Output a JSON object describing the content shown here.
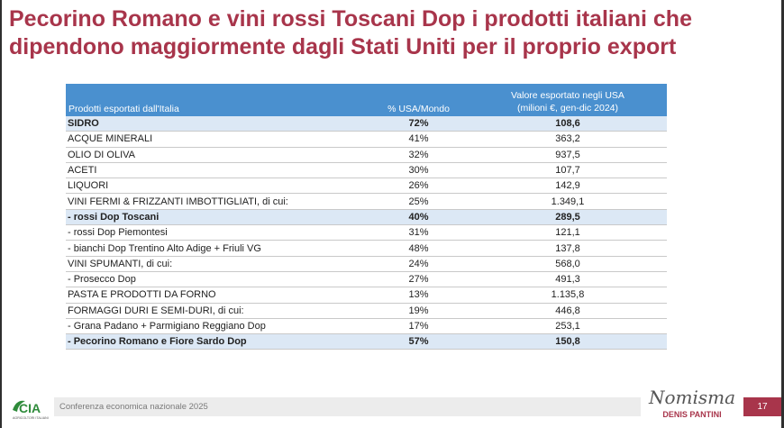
{
  "title": "Pecorino Romano e vini rossi Toscani Dop i prodotti italiani che dipendono maggiormente dagli Stati Uniti per il proprio export",
  "table": {
    "headers": {
      "product": "Prodotti esportati dall'Italia",
      "share": "% USA/Mondo",
      "value_line1": "Valore esportato negli USA",
      "value_line2": "(milioni €, gen-dic 2024)"
    },
    "rows": [
      {
        "product": "SIDRO",
        "share": "72%",
        "value": "108,6",
        "highlight": true
      },
      {
        "product": "ACQUE MINERALI",
        "share": "41%",
        "value": "363,2",
        "highlight": false
      },
      {
        "product": "OLIO DI OLIVA",
        "share": "32%",
        "value": "937,5",
        "highlight": false
      },
      {
        "product": "ACETI",
        "share": "30%",
        "value": "107,7",
        "highlight": false
      },
      {
        "product": "LIQUORI",
        "share": "26%",
        "value": "142,9",
        "highlight": false
      },
      {
        "product": "VINI FERMI & FRIZZANTI IMBOTTIGLIATI, di cui:",
        "share": "25%",
        "value": "1.349,1",
        "highlight": false
      },
      {
        "product": " - rossi Dop Toscani",
        "share": "40%",
        "value": "289,5",
        "highlight": true
      },
      {
        "product": " - rossi Dop Piemontesi",
        "share": "31%",
        "value": "121,1",
        "highlight": false
      },
      {
        "product": " -  bianchi Dop Trentino Alto Adige + Friuli VG",
        "share": "48%",
        "value": "137,8",
        "highlight": false
      },
      {
        "product": "VINI SPUMANTI, di cui:",
        "share": "24%",
        "value": "568,0",
        "highlight": false
      },
      {
        "product": " - Prosecco Dop",
        "share": "27%",
        "value": "491,3",
        "highlight": false
      },
      {
        "product": "PASTA E PRODOTTI DA FORNO",
        "share": "13%",
        "value": "1.135,8",
        "highlight": false
      },
      {
        "product": "FORMAGGI DURI E SEMI-DURI, di cui:",
        "share": "19%",
        "value": "446,8",
        "highlight": false
      },
      {
        "product": " - Grana Padano + Parmigiano Reggiano Dop",
        "share": "17%",
        "value": "253,1",
        "highlight": false
      },
      {
        "product": " - Pecorino Romano e Fiore Sardo Dop",
        "share": "57%",
        "value": "150,8",
        "highlight": true
      }
    ]
  },
  "footer": {
    "logo_text": "CIA",
    "logo_sub": "AGRICOLTORI ITALIANI",
    "conference": "Conferenza economica nazionale 2025",
    "brand": "Nomisma",
    "author": "DENIS PANTINI",
    "page": "17"
  },
  "colors": {
    "accent": "#a8354b",
    "header_blue": "#4a90cf",
    "highlight_row": "#dce8f5",
    "logo_green": "#2e8b3a"
  }
}
